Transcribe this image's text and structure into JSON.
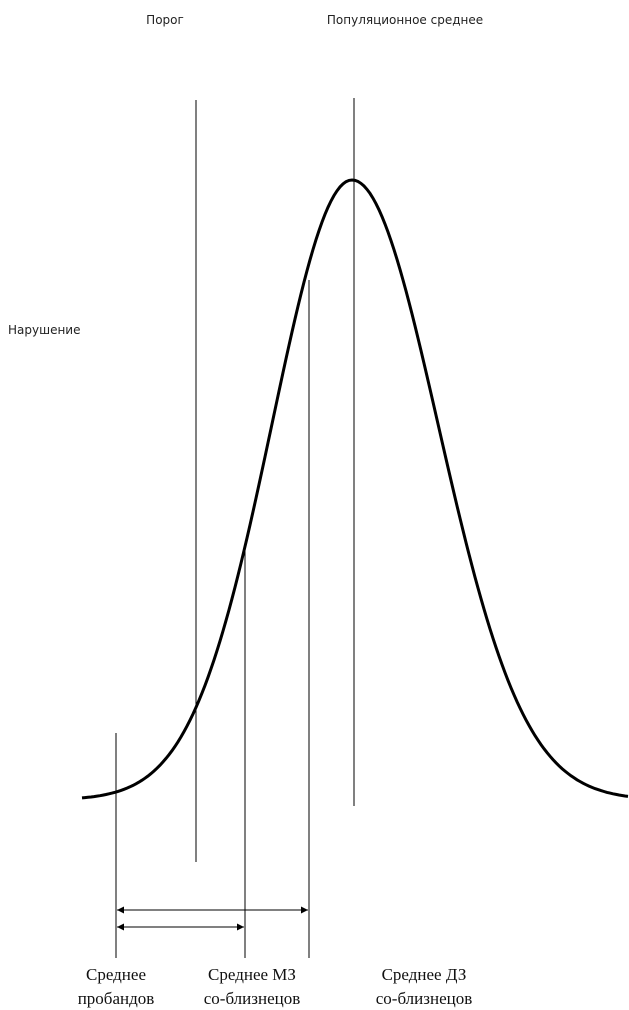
{
  "top_labels": [
    "Порог",
    "Популяционное среднее"
  ],
  "side_label": "Нарушение",
  "bottom_labels": [
    {
      "lines": [
        "Среднее",
        "пробандов"
      ]
    },
    {
      "lines": [
        "Среднее МЗ",
        "со-близнецов"
      ]
    },
    {
      "lines": [
        "Среднее ДЗ",
        "со-близнецов"
      ]
    }
  ]
}
